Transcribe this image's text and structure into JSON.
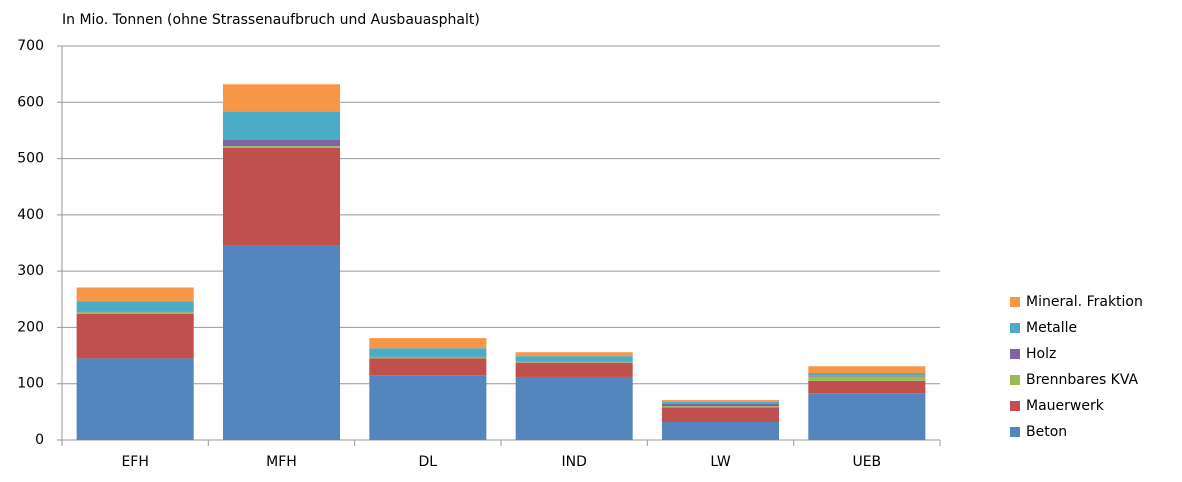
{
  "chart_data": {
    "type": "stacked_bar",
    "title": "In Mio. Tonnen (ohne Strassenaufbruch und Ausbauasphalt)",
    "categories": [
      "EFH",
      "MFH",
      "DL",
      "IND",
      "LW",
      "UEB"
    ],
    "series": [
      {
        "name": "Beton",
        "color": "#5585bd",
        "values": [
          145,
          345,
          115,
          112,
          32,
          83
        ]
      },
      {
        "name": "Mauerwerk",
        "color": "#c0504d",
        "values": [
          79,
          174,
          30,
          25,
          26,
          22
        ]
      },
      {
        "name": "Brennbares KVA",
        "color": "#9bbb59",
        "values": [
          3,
          3,
          2,
          1,
          2,
          8
        ]
      },
      {
        "name": "Holz",
        "color": "#8064a2",
        "values": [
          1,
          11,
          1,
          1,
          4,
          1
        ]
      },
      {
        "name": "Metalle",
        "color": "#4bacc6",
        "values": [
          18,
          51,
          15,
          10,
          4,
          5
        ]
      },
      {
        "name": "Mineral. Fraktion",
        "color": "#f79646",
        "values": [
          25,
          48,
          18,
          7,
          3,
          12
        ]
      }
    ],
    "ylim": [
      0,
      700
    ],
    "yticks": [
      0,
      100,
      200,
      300,
      400,
      500,
      600,
      700
    ],
    "grid": true,
    "legend": "right"
  }
}
